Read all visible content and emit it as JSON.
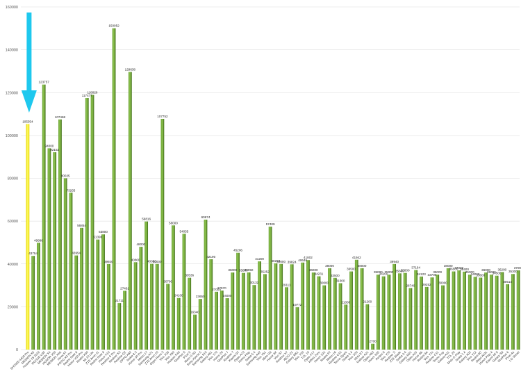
{
  "colors": {
    "bar_light": "#8fc44f",
    "bar_mid": "#6aa335",
    "bar_dark": "#3f6e18",
    "highlight_light": "#ffff66",
    "highlight_dark": "#e6d200",
    "arrow": "#1ec8ee",
    "grid": "#d9d9d9"
  },
  "annotation": {
    "arrow_icon": "down-arrow-icon",
    "target_index": 0
  },
  "chart_data": {
    "type": "bar",
    "title": "",
    "xlabel": "",
    "ylabel": "",
    "ylim": [
      0,
      160000
    ],
    "y_ticks": [
      0,
      20000,
      40000,
      60000,
      80000,
      100000,
      120000,
      140000,
      160000
    ],
    "grid": true,
    "legend": "none",
    "highlighted_category_index": 0,
    "categories": [
      "SHC920 4400 Pro",
      "MEDION X5",
      "Huawei Y9 2019",
      "ROGUE U35",
      "MEDION X4",
      "HONOR V30",
      "MEDION X4A",
      "Nova 5T",
      "POCO X3 Pro",
      "Redmi Note 9",
      "Honor V30 Pro",
      "Redmi K30",
      "Mi 10 Lite",
      "ZTE Axon 11",
      "Redmi Note 8",
      "Honor X10",
      "Realme 6 Pro",
      "Realme X3",
      "Realme Q2",
      "OPPO A92",
      "Nokia 8.3",
      "Honor 30 Pro",
      "Meizu 17",
      "Samsung A71",
      "ZTE Axon 10",
      "Oppo Reno 3",
      "Vivo X30",
      "Vivo X50",
      "Huawei P40",
      "OnePlus 8",
      "Pixel 5",
      "Moto G 5G",
      "Sony Xperia 5",
      "Samsung S10",
      "Galaxy A51",
      "Vivo Y70",
      "Honor 20",
      "OnePlus 7",
      "Realme 7",
      "Xiaomi 9T",
      "Oppo A73",
      "Honor Play",
      "Nokia 5.4",
      "Samsung A42",
      "Vivo Y51",
      "Moto G9",
      "Honor 9X",
      "Vivo S7",
      "Realme X7",
      "iQOO Z1",
      "Galaxy M51",
      "Vivo Y30",
      "TCL 10",
      "Oppo F17",
      "Infinix Zero",
      "Honor 10X",
      "Redmi 9T",
      "Meizu 16",
      "Realme C15",
      "Tecno Spark",
      "Nokia 3.4",
      "Vivo V20",
      "Moto E7",
      "Galaxy A21",
      "Oppo A53",
      "Honor 30S",
      "Redmi 9",
      "Vivo Y20",
      "Realme 7i",
      "ZTE Blade",
      "Nokia 2.4",
      "Galaxy M21",
      "Oppo A15",
      "Honor 9A",
      "Redmi 9A",
      "Vivo Y1s",
      "Realme C11",
      "Tecno Pop",
      "Galaxy A11",
      "TCL 20",
      "Moto G Play",
      "Nokia 1.4",
      "Galaxy A02",
      "Vivo Y12",
      "Redmi 9C",
      "Oppo A11k",
      "Honor Play 4",
      "Xiaomi Mi 9",
      "Galaxy S9",
      "OnePlus 6",
      "Pixel 4a",
      "LG Velvet"
    ],
    "values": [
      105354,
      43754,
      49886,
      123757,
      94000,
      92152,
      107468,
      80025,
      73265,
      43954,
      56854,
      117477,
      118926,
      51396,
      53800,
      39920,
      150052,
      21711,
      27461,
      129638,
      40800,
      48000,
      59816,
      40050,
      40000,
      107752,
      30700,
      58000,
      24100,
      54055,
      33536,
      16340,
      23650,
      60674,
      42190,
      27000,
      27570,
      24000,
      36000,
      45206,
      35800,
      36050,
      30132,
      41200,
      35252,
      57409,
      40293,
      40000,
      29111,
      39824,
      19772,
      40646,
      41802,
      36000,
      34231,
      30000,
      38000,
      33500,
      31000,
      21000,
      36500,
      41942,
      38000,
      21200,
      2700,
      35000,
      34200,
      35000,
      39940,
      35600,
      35800,
      28740,
      37164,
      34123,
      29252,
      33700,
      35000,
      30000,
      38000,
      36500,
      37000,
      36400,
      35000,
      34000,
      33600,
      36000,
      35000,
      34500,
      36200,
      30514,
      35300,
      37000
    ],
    "data_labels": [
      "105354",
      "43754",
      "49886",
      "123757",
      "94000",
      "92152",
      "107468",
      "80025",
      "73265",
      "43954",
      "56854",
      "117477",
      "118926",
      "51396",
      "53800",
      "39920",
      "150052",
      "21711",
      "27461",
      "129638",
      "40800",
      "48000",
      "59816",
      "40050",
      "40000",
      "107752",
      "30700",
      "58000",
      "24100",
      "54055",
      "33536",
      "16340",
      "23650",
      "60674",
      "42190",
      "27000",
      "27570",
      "24000",
      "36000",
      "45206",
      "35800",
      "36050",
      "30132",
      "41200",
      "35252",
      "57409",
      "40293",
      "40000",
      "29111",
      "39824",
      "19772",
      "40646",
      "41802",
      "36000",
      "34231",
      "30000",
      "38000",
      "33500",
      "31000",
      "21000",
      "36500",
      "41942",
      "38000",
      "21200",
      "2700",
      "35000",
      "34200",
      "35000",
      "39940",
      "35600",
      "35800",
      "28740",
      "37164",
      "34123",
      "29252",
      "33700",
      "35000",
      "30000",
      "38000",
      "36500",
      "37000",
      "36400",
      "35000",
      "34000",
      "33600",
      "36000",
      "35000",
      "34500",
      "36200",
      "30514",
      "35300",
      "37000"
    ]
  }
}
